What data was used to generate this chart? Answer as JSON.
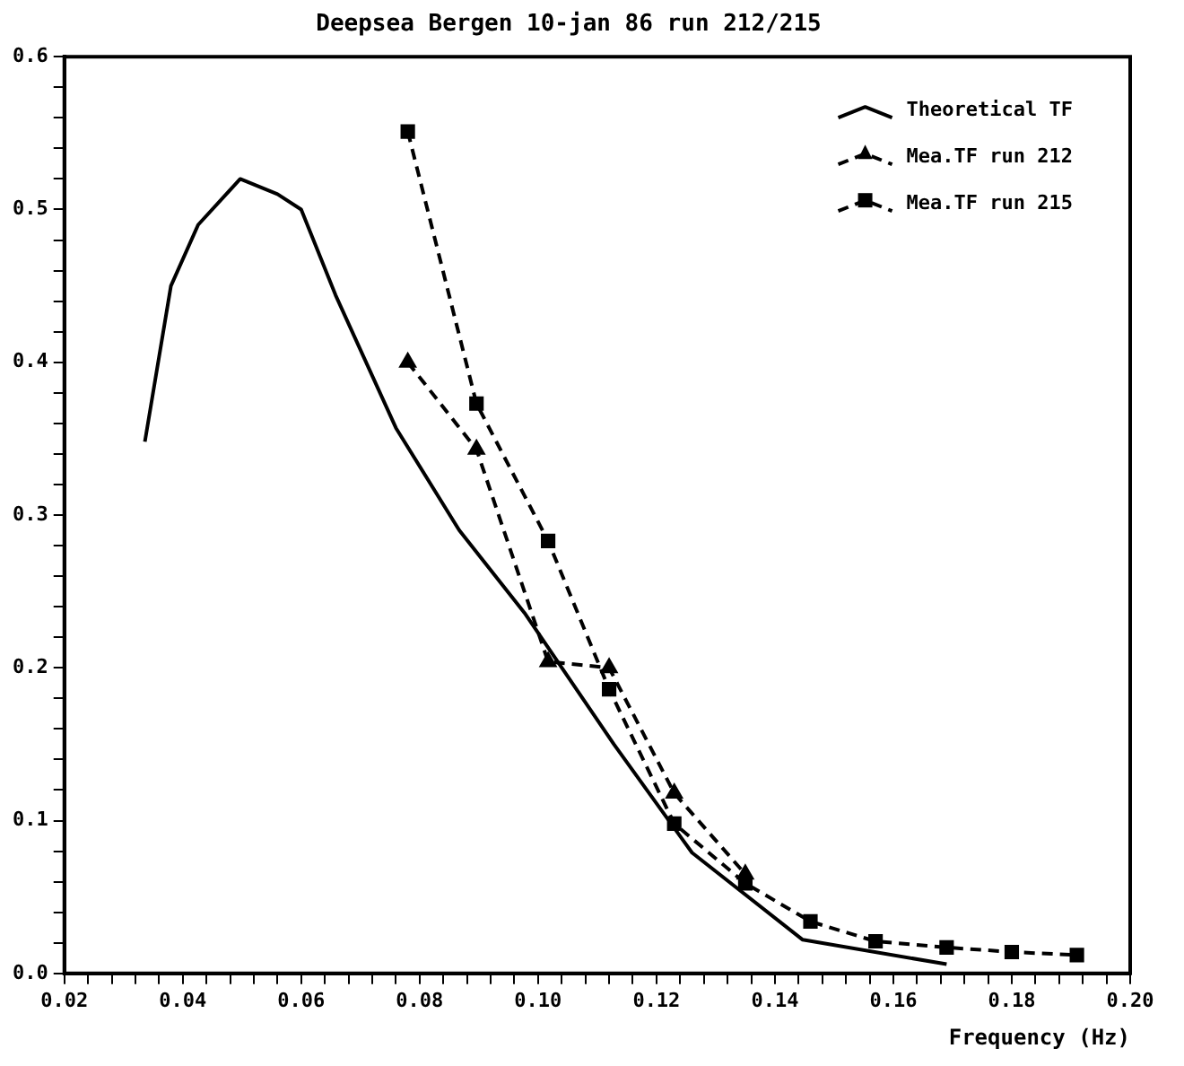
{
  "chart_data": {
    "type": "line",
    "title": "Deepsea Bergen 10-jan 86 run 212/215",
    "xlabel": "Frequency (Hz)",
    "xlim": [
      0.02,
      0.2
    ],
    "xticks": [
      0.02,
      {
        "value": 0.024,
        "label": null
      },
      {
        "value": 0.028,
        "label": null
      },
      {
        "value": 0.032,
        "label": null
      },
      {
        "value": 0.036,
        "label": null
      },
      0.04,
      {
        "value": 0.044,
        "label": null
      },
      {
        "value": 0.048,
        "label": null
      },
      {
        "value": 0.052,
        "label": null
      },
      {
        "value": 0.056,
        "label": null
      },
      0.06,
      {
        "value": 0.064,
        "label": null
      },
      {
        "value": 0.068,
        "label": null
      },
      {
        "value": 0.072,
        "label": null
      },
      {
        "value": 0.076,
        "label": null
      },
      0.08,
      {
        "value": 0.084,
        "label": null
      },
      {
        "value": 0.088,
        "label": null
      },
      {
        "value": 0.092,
        "label": null
      },
      {
        "value": 0.096,
        "label": null
      },
      {
        "value": 0.1,
        "label": "0.10"
      },
      {
        "value": 0.104,
        "label": null
      },
      {
        "value": 0.108,
        "label": null
      },
      {
        "value": 0.112,
        "label": null
      },
      {
        "value": 0.116,
        "label": null
      },
      0.12,
      {
        "value": 0.124,
        "label": null
      },
      {
        "value": 0.128,
        "label": null
      },
      {
        "value": 0.132,
        "label": null
      },
      {
        "value": 0.136,
        "label": null
      },
      0.14,
      {
        "value": 0.144,
        "label": null
      },
      {
        "value": 0.148,
        "label": null
      },
      {
        "value": 0.152,
        "label": null
      },
      {
        "value": 0.156,
        "label": null
      },
      0.16,
      {
        "value": 0.164,
        "label": null
      },
      {
        "value": 0.168,
        "label": null
      },
      {
        "value": 0.172,
        "label": null
      },
      {
        "value": 0.176,
        "label": null
      },
      0.18,
      {
        "value": 0.184,
        "label": null
      },
      {
        "value": 0.188,
        "label": null
      },
      {
        "value": 0.192,
        "label": null
      },
      {
        "value": 0.196,
        "label": null
      },
      {
        "value": 0.2,
        "label": "0.20"
      }
    ],
    "ylim": [
      0,
      0.6
    ],
    "yticks": [
      {
        "value": 0,
        "label": "0.0"
      },
      {
        "value": 0.02,
        "label": null
      },
      {
        "value": 0.04,
        "label": null
      },
      {
        "value": 0.06,
        "label": null
      },
      {
        "value": 0.08,
        "label": null
      },
      0.1,
      {
        "value": 0.12,
        "label": null
      },
      {
        "value": 0.14,
        "label": null
      },
      {
        "value": 0.16,
        "label": null
      },
      {
        "value": 0.18,
        "label": null
      },
      0.2,
      {
        "value": 0.22,
        "label": null
      },
      {
        "value": 0.24,
        "label": null
      },
      {
        "value": 0.26,
        "label": null
      },
      {
        "value": 0.28,
        "label": null
      },
      0.3,
      {
        "value": 0.32,
        "label": null
      },
      {
        "value": 0.34,
        "label": null
      },
      {
        "value": 0.36,
        "label": null
      },
      {
        "value": 0.38,
        "label": null
      },
      0.4,
      {
        "value": 0.42,
        "label": null
      },
      {
        "value": 0.44,
        "label": null
      },
      {
        "value": 0.46,
        "label": null
      },
      {
        "value": 0.48,
        "label": null
      },
      0.5,
      {
        "value": 0.52,
        "label": null
      },
      {
        "value": 0.54,
        "label": null
      },
      {
        "value": 0.56,
        "label": null
      },
      {
        "value": 0.58,
        "label": null
      },
      0.6
    ],
    "grid": false,
    "legend": "top right",
    "series": [
      {
        "name": "Theoretical TF",
        "color": "#000000",
        "marker": "none",
        "line_style": "solid",
        "x": [
          0.0336,
          0.038,
          0.0426,
          0.0497,
          0.056,
          0.06,
          0.0658,
          0.076,
          0.0867,
          0.0977,
          0.1128,
          0.126,
          0.1447,
          0.169
        ],
        "values": [
          0.348,
          0.45,
          0.49,
          0.52,
          0.51,
          0.5,
          0.444,
          0.357,
          0.29,
          0.236,
          0.15,
          0.079,
          0.022,
          0.006
        ]
      },
      {
        "name": "Mea.TF run 212",
        "color": "#000000",
        "marker": "triangle",
        "line_style": "dashed",
        "x": [
          0.078,
          0.0896,
          0.1017,
          0.112,
          0.123,
          0.135
        ],
        "values": [
          0.4,
          0.343,
          0.204,
          0.2,
          0.118,
          0.065
        ]
      },
      {
        "name": "Mea.TF run 215",
        "color": "#000000",
        "marker": "square",
        "line_style": "dashed",
        "x": [
          0.078,
          0.0896,
          0.1017,
          0.112,
          0.123,
          0.135,
          0.146,
          0.157,
          0.169,
          0.18,
          0.191
        ],
        "values": [
          0.551,
          0.373,
          0.283,
          0.186,
          0.098,
          0.059,
          0.034,
          0.021,
          0.017,
          0.014,
          0.012
        ]
      }
    ]
  }
}
